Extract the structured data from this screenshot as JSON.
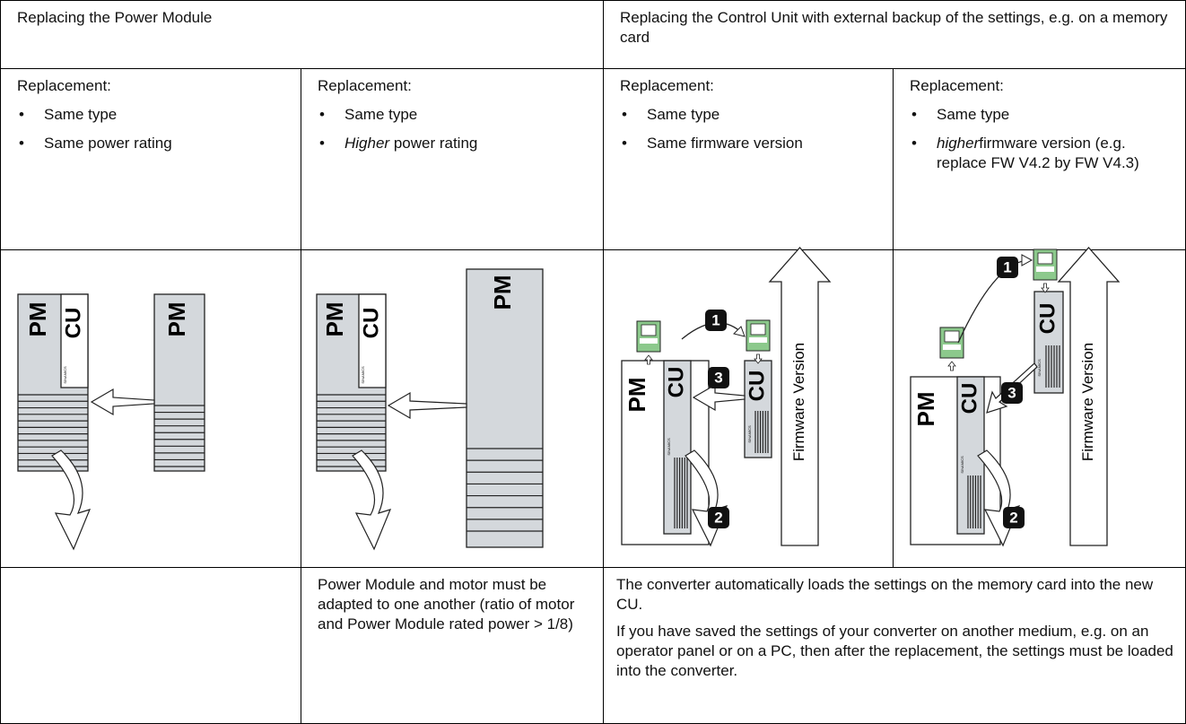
{
  "table": {
    "header": [
      "Replacing the Power Module",
      "Replacing the Control Unit with external backup of the settings, e.g. on a memory card"
    ],
    "cases": [
      {
        "heading": "Replacement:",
        "items": [
          {
            "text": "Same type"
          },
          {
            "text": "Same power rating"
          }
        ]
      },
      {
        "heading": "Replacement:",
        "items": [
          {
            "text": "Same type"
          },
          {
            "em": "Higher",
            "text": " power rating"
          }
        ]
      },
      {
        "heading": "Replacement:",
        "items": [
          {
            "text": "Same type"
          },
          {
            "text": "Same firmware version"
          }
        ]
      },
      {
        "heading": "Replacement:",
        "items": [
          {
            "text": "Same type"
          },
          {
            "em": "higher",
            "text": "firmware version (e.g. replace FW V4.2 by FW V4.3)"
          }
        ]
      }
    ],
    "notes": [
      "Power Module and motor must be adapted to one another (ratio of motor and Power Module rated power > 1/8)",
      "The converter automatically loads the settings on the memory card into the new CU.",
      "If you have saved the settings of your converter on another medium, e.g. on an operator panel or on a PC, then after the replacement, the settings must be loaded into the converter."
    ]
  },
  "diagrams": {
    "pm": "PM",
    "cu": "CU",
    "brand": "SINAMICS",
    "steps": [
      "1",
      "2",
      "3"
    ],
    "axis": "Firmware Version"
  }
}
